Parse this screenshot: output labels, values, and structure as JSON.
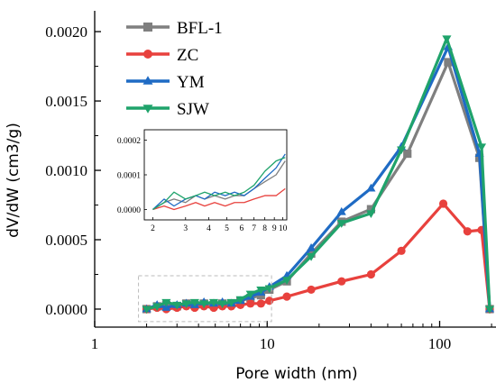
{
  "chart_data": {
    "type": "line",
    "xscale": "log",
    "xlim": [
      1,
      220
    ],
    "ylim": [
      -0.00013,
      0.00215
    ],
    "xlabel": "Pore width (nm)",
    "ylabel": "dV/dW (cm3/g)",
    "x_ticks": [
      {
        "value": 1,
        "label": "1"
      },
      {
        "value": 10,
        "label": "10"
      },
      {
        "value": 100,
        "label": "100"
      }
    ],
    "y_ticks": [
      {
        "value": 0,
        "label": "0.0000"
      },
      {
        "value": 0.0005,
        "label": "0.0005"
      },
      {
        "value": 0.001,
        "label": "0.0010"
      },
      {
        "value": 0.0015,
        "label": "0.0015"
      },
      {
        "value": 0.002,
        "label": "0.0020"
      }
    ],
    "legend_position": "top-left",
    "series": [
      {
        "name": "BFL-1",
        "color": "#7f7f7f",
        "marker": "square",
        "points": [
          [
            2.0,
            0.0
          ],
          [
            2.3,
            2e-05
          ],
          [
            2.6,
            3e-05
          ],
          [
            3.0,
            2e-05
          ],
          [
            3.4,
            4e-05
          ],
          [
            3.8,
            3e-05
          ],
          [
            4.3,
            4e-05
          ],
          [
            4.9,
            3e-05
          ],
          [
            5.5,
            4e-05
          ],
          [
            6.2,
            4e-05
          ],
          [
            7.0,
            6e-05
          ],
          [
            8.0,
            8e-05
          ],
          [
            9.2,
            0.0001
          ],
          [
            10.3,
            0.00014
          ],
          [
            13.0,
            0.0002
          ],
          [
            18.0,
            0.0004
          ],
          [
            27.0,
            0.00063
          ],
          [
            40.0,
            0.00072
          ],
          [
            65.0,
            0.00112
          ],
          [
            112.0,
            0.00178
          ],
          [
            170.0,
            0.00109
          ],
          [
            195.0,
            0.0
          ]
        ]
      },
      {
        "name": "ZC",
        "color": "#e8413d",
        "marker": "circle",
        "points": [
          [
            2.0,
            0.0
          ],
          [
            2.3,
            1e-05
          ],
          [
            2.6,
            0.0
          ],
          [
            3.0,
            1e-05
          ],
          [
            3.4,
            2e-05
          ],
          [
            3.8,
            1e-05
          ],
          [
            4.3,
            2e-05
          ],
          [
            4.9,
            1e-05
          ],
          [
            5.5,
            2e-05
          ],
          [
            6.2,
            2e-05
          ],
          [
            7.0,
            3e-05
          ],
          [
            8.0,
            4e-05
          ],
          [
            9.2,
            4e-05
          ],
          [
            10.3,
            6e-05
          ],
          [
            13.0,
            9e-05
          ],
          [
            18.0,
            0.00014
          ],
          [
            27.0,
            0.0002
          ],
          [
            40.0,
            0.00025
          ],
          [
            60.0,
            0.00042
          ],
          [
            105.0,
            0.00076
          ],
          [
            145.0,
            0.00056
          ],
          [
            175.0,
            0.00057
          ],
          [
            195.0,
            0.0
          ]
        ]
      },
      {
        "name": "YM",
        "color": "#1f6bc4",
        "marker": "triangle-up",
        "points": [
          [
            2.0,
            0.0
          ],
          [
            2.3,
            3e-05
          ],
          [
            2.6,
            1e-05
          ],
          [
            3.0,
            3e-05
          ],
          [
            3.4,
            4e-05
          ],
          [
            3.8,
            3e-05
          ],
          [
            4.3,
            5e-05
          ],
          [
            4.9,
            4e-05
          ],
          [
            5.5,
            5e-05
          ],
          [
            6.2,
            4e-05
          ],
          [
            7.0,
            6e-05
          ],
          [
            8.0,
            9e-05
          ],
          [
            9.2,
            0.00012
          ],
          [
            10.3,
            0.00016
          ],
          [
            13.0,
            0.00024
          ],
          [
            18.0,
            0.00044
          ],
          [
            27.0,
            0.0007
          ],
          [
            40.0,
            0.00087
          ],
          [
            60.0,
            0.00117
          ],
          [
            112.0,
            0.00189
          ],
          [
            170.0,
            0.00112
          ],
          [
            195.0,
            0.0
          ]
        ]
      },
      {
        "name": "SJW",
        "color": "#1fa36b",
        "marker": "triangle-down",
        "points": [
          [
            2.0,
            0.0
          ],
          [
            2.3,
            2e-05
          ],
          [
            2.6,
            5e-05
          ],
          [
            3.0,
            3e-05
          ],
          [
            3.4,
            4e-05
          ],
          [
            3.8,
            5e-05
          ],
          [
            4.3,
            4e-05
          ],
          [
            4.9,
            5e-05
          ],
          [
            5.5,
            4e-05
          ],
          [
            6.2,
            5e-05
          ],
          [
            7.0,
            7e-05
          ],
          [
            8.0,
            0.00011
          ],
          [
            9.2,
            0.00014
          ],
          [
            10.3,
            0.00015
          ],
          [
            13.0,
            0.00021
          ],
          [
            18.0,
            0.00038
          ],
          [
            27.0,
            0.00062
          ],
          [
            40.0,
            0.00069
          ],
          [
            60.0,
            0.00115
          ],
          [
            110.0,
            0.00195
          ],
          [
            175.0,
            0.00117
          ],
          [
            195.0,
            0.0
          ]
        ]
      }
    ],
    "inset": {
      "xscale": "log",
      "xlim": [
        1.8,
        10.5
      ],
      "ylim": [
        -3e-05,
        0.00023
      ],
      "x_ticks": [
        {
          "value": 2,
          "label": "2"
        },
        {
          "value": 3,
          "label": "3"
        },
        {
          "value": 4,
          "label": "4"
        },
        {
          "value": 5,
          "label": "5"
        },
        {
          "value": 6,
          "label": "6"
        },
        {
          "value": 7,
          "label": "7"
        },
        {
          "value": 8,
          "label": "8"
        },
        {
          "value": 9,
          "label": "9"
        },
        {
          "value": 10,
          "label": "10"
        }
      ],
      "y_ticks": [
        {
          "value": 0,
          "label": "0.0000"
        },
        {
          "value": 0.0001,
          "label": "0.0001"
        },
        {
          "value": 0.0002,
          "label": "0.0002"
        }
      ]
    }
  }
}
